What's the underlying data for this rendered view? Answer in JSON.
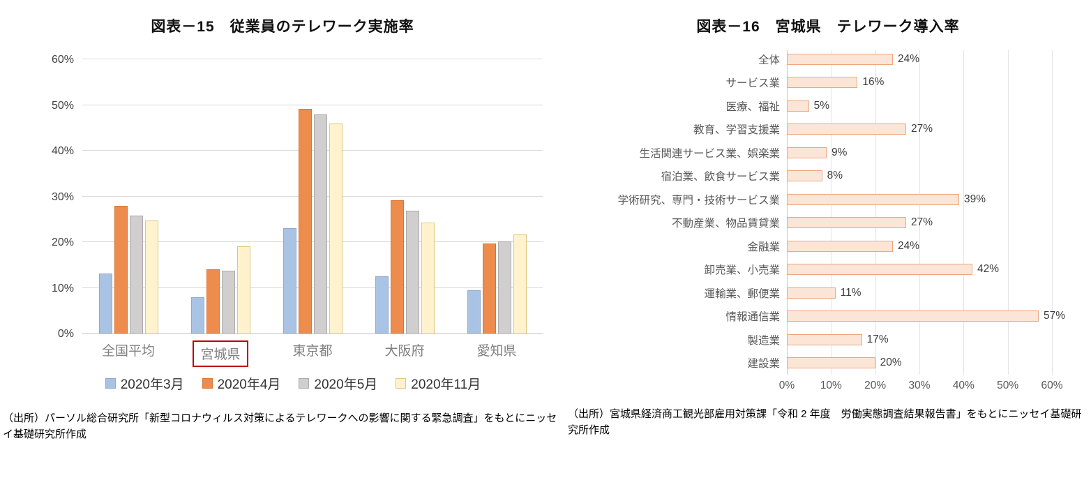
{
  "sources": {
    "left": "（出所）パーソル総合研究所「新型コロナウィルス対策によるテレワークへの影響に関する緊急調査」をもとにニッセイ基礎研究所作成",
    "right": "（出所）宮城県経済商工観光部雇用対策課「令和 2 年度　労働実態調査結果報告書」をもとにニッセイ基礎研究所作成"
  },
  "highlight_box_color": "#C00000",
  "chart_data": [
    {
      "type": "bar",
      "title": "図表－15　従業員のテレワーク実施率",
      "categories": [
        "全国平均",
        "宮城県",
        "東京都",
        "大阪府",
        "愛知県"
      ],
      "highlighted_category": "宮城県",
      "series": [
        {
          "name": "2020年3月",
          "color": "#A9C3E4",
          "border": "#8FAACB",
          "values": [
            13.2,
            8.0,
            23.1,
            12.5,
            9.5
          ]
        },
        {
          "name": "2020年4月",
          "color": "#ED8C4D",
          "border": "#DB752F",
          "values": [
            28.0,
            14.1,
            49.1,
            29.1,
            19.7
          ]
        },
        {
          "name": "2020年5月",
          "color": "#D0CECE",
          "border": "#ADaaaa",
          "values": [
            25.8,
            13.8,
            48.0,
            26.8,
            20.1
          ]
        },
        {
          "name": "2020年11月",
          "color": "#FFF2CC",
          "border": "#DCC97E",
          "values": [
            24.7,
            19.1,
            46.0,
            24.3,
            21.7
          ]
        }
      ],
      "ylim": [
        0,
        60
      ],
      "ytick_step": 10,
      "yticks": [
        "0%",
        "10%",
        "20%",
        "30%",
        "40%",
        "50%",
        "60%"
      ],
      "grid": true,
      "legend_position": "bottom"
    },
    {
      "type": "bar",
      "orientation": "horizontal",
      "title": "図表－16　宮城県　テレワーク導入率",
      "categories": [
        "全体",
        "サービス業",
        "医療、福祉",
        "教育、学習支援業",
        "生活関連サービス業、娯楽業",
        "宿泊業、飲食サービス業",
        "学術研究、専門・技術サービス業",
        "不動産業、物品賃貸業",
        "金融業",
        "卸売業、小売業",
        "運輸業、郵便業",
        "情報通信業",
        "製造業",
        "建設業"
      ],
      "values": [
        24,
        16,
        5,
        27,
        9,
        8,
        39,
        27,
        24,
        42,
        11,
        57,
        17,
        20
      ],
      "value_labels": [
        "24%",
        "16%",
        "5%",
        "27%",
        "9%",
        "8%",
        "39%",
        "27%",
        "24%",
        "42%",
        "11%",
        "57%",
        "17%",
        "20%"
      ],
      "xlim": [
        0,
        60
      ],
      "xtick_step": 10,
      "xticks": [
        "0%",
        "10%",
        "20%",
        "30%",
        "40%",
        "50%",
        "60%"
      ],
      "grid": true,
      "bar_color": "#FBE5D6",
      "bar_border": "#F0A57E",
      "legend_position": "none"
    }
  ]
}
